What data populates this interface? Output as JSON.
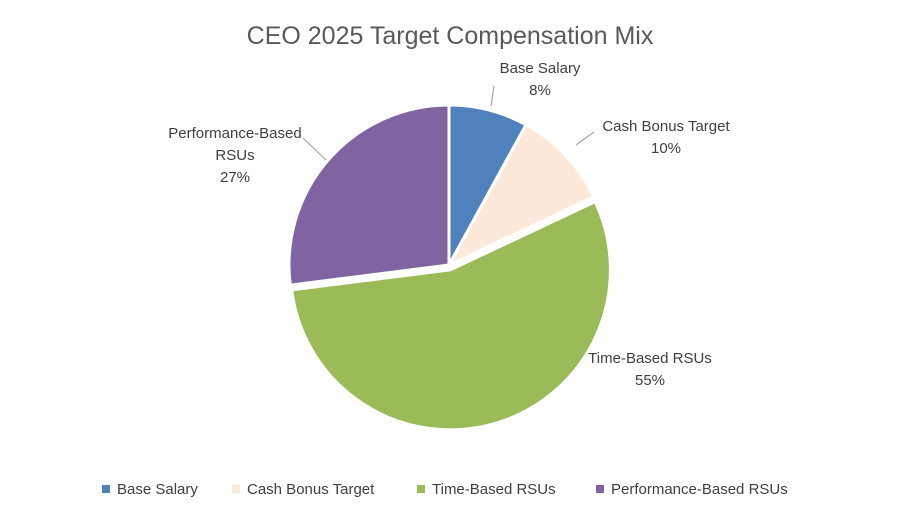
{
  "chart_data": {
    "type": "pie",
    "title": "CEO 2025 Target Compensation Mix",
    "legend_position": "bottom",
    "slices": [
      {
        "name": "Base Salary",
        "value": 8,
        "label_lines": [
          "Base Salary",
          "8%"
        ],
        "color": "#4f81bd"
      },
      {
        "name": "Cash Bonus Target",
        "value": 10,
        "label_lines": [
          "Cash Bonus Target",
          "10%"
        ],
        "color": "#fde9d9"
      },
      {
        "name": "Time-Based RSUs",
        "value": 55,
        "label_lines": [
          "Time-Based RSUs",
          "55%"
        ],
        "color": "#9bbb59"
      },
      {
        "name": "Performance-Based RSUs",
        "value": 27,
        "label_lines": [
          "Performance-Based",
          "RSUs",
          "27%"
        ],
        "color": "#8064a2"
      }
    ]
  }
}
